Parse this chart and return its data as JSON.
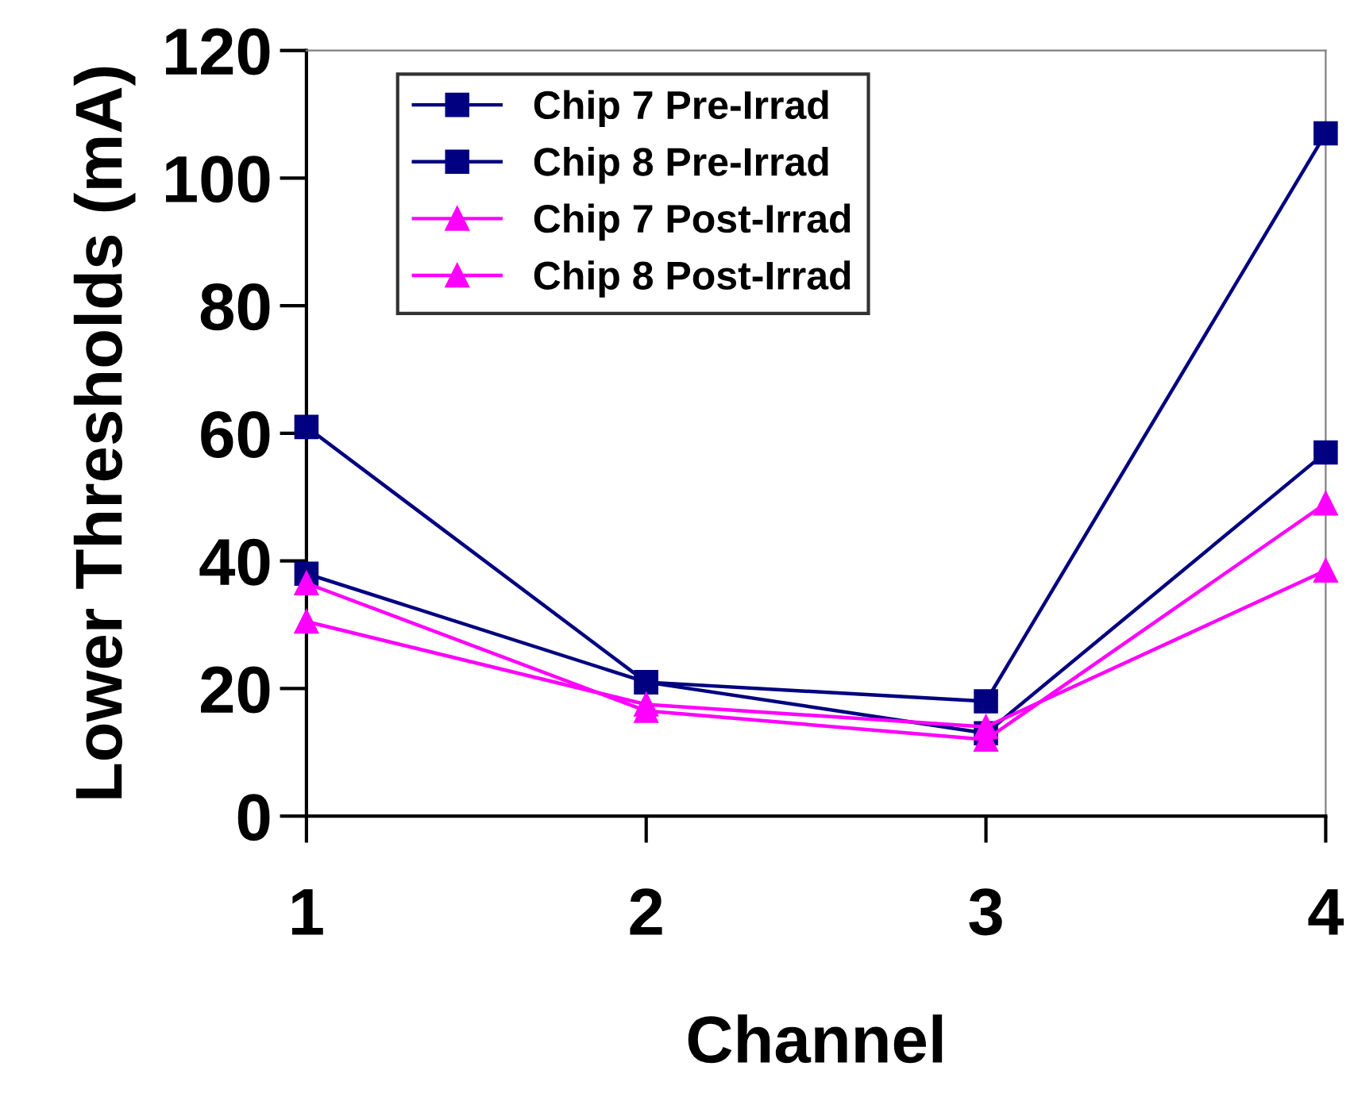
{
  "chart_data": {
    "type": "line",
    "xlabel": "Channel",
    "ylabel": "Lower Thresholds (mA)",
    "x": [
      1,
      2,
      3,
      4
    ],
    "series": [
      {
        "name": "Chip 7 Pre-Irrad",
        "color": "#000080",
        "marker": "square",
        "values": [
          61,
          21,
          18,
          107
        ]
      },
      {
        "name": "Chip 8 Pre-Irrad",
        "color": "#000080",
        "marker": "square",
        "values": [
          38,
          21,
          13,
          57
        ]
      },
      {
        "name": "Chip 7 Post-Irrad",
        "color": "#ff00ff",
        "marker": "triangle",
        "values": [
          36.5,
          16.5,
          12,
          49
        ]
      },
      {
        "name": "Chip 8 Post-Irrad",
        "color": "#ff00ff",
        "marker": "triangle",
        "values": [
          30.5,
          17.5,
          14,
          38.5
        ]
      }
    ],
    "xlim": [
      1,
      4
    ],
    "xticks": [
      1,
      2,
      3,
      4
    ],
    "ylim": [
      0,
      120
    ],
    "yticks": [
      0,
      20,
      40,
      60,
      80,
      100,
      120
    ],
    "grid": false,
    "legend": "top left",
    "line_style": "solid"
  }
}
